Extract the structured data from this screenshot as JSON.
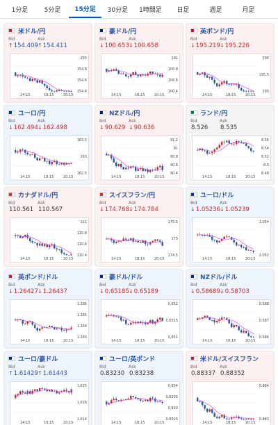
{
  "tabs": [
    {
      "label": "1分足",
      "active": false
    },
    {
      "label": "5分足",
      "active": false
    },
    {
      "label": "15分足",
      "active": true
    },
    {
      "label": "30分足",
      "active": false
    },
    {
      "label": "1時間足",
      "active": false
    },
    {
      "label": "日足",
      "active": false
    },
    {
      "label": "週足",
      "active": false
    },
    {
      "label": "月足",
      "active": false
    }
  ],
  "colors": {
    "down": "#c0282d",
    "up": "#2a55a8",
    "link": "#2a55a8",
    "ma": "#d34bd3"
  },
  "cards": [
    {
      "pair": "米ドル/円",
      "flag": "us",
      "bid": "154.409",
      "ask": "154.411",
      "bid_dir": "up",
      "ask_dir": "up",
      "card_tone": "down",
      "ylabels": [
        "155",
        "154.8",
        "154.6",
        "154.4"
      ],
      "xlabels": [
        "14:15",
        "18:15",
        "20:15"
      ]
    },
    {
      "pair": "豪ドル/円",
      "flag": "au",
      "bid": "100.653",
      "ask": "100.658",
      "bid_dir": "down",
      "ask_dir": "down",
      "card_tone": "down",
      "ylabels": [
        "101",
        "100.8",
        "100.6",
        "100.4"
      ],
      "xlabels": [
        "14:15",
        "18:15",
        "20:15"
      ]
    },
    {
      "pair": "英ポンド/円",
      "flag": "gb",
      "bid": "195.219",
      "ask": "195.226",
      "bid_dir": "down",
      "ask_dir": "down",
      "card_tone": "down",
      "ylabels": [
        "196",
        "195.5",
        "195"
      ],
      "xlabels": [
        "14:15",
        "18:15",
        "20:15"
      ]
    },
    {
      "pair": "ユーロ/円",
      "flag": "eu",
      "bid": "162.494",
      "ask": "162.498",
      "bid_dir": "down",
      "ask_dir": "down",
      "card_tone": "up",
      "ylabels": [
        "163.5",
        "163",
        "162.5"
      ],
      "xlabels": [
        "14:15",
        "18:15",
        "20:15"
      ]
    },
    {
      "pair": "NZドル/円",
      "flag": "nz",
      "bid": "90.629",
      "ask": "90.636",
      "bid_dir": "down",
      "ask_dir": "down",
      "card_tone": "down",
      "ylabels": [
        "91.2",
        "91",
        "90.8",
        "90.6",
        "90.4"
      ],
      "xlabels": [
        "14:15",
        "18:15",
        "20:15"
      ]
    },
    {
      "pair": "ランド/円",
      "flag": "za",
      "bid": "8.526",
      "ask": "8.535",
      "bid_dir": "flat",
      "ask_dir": "flat",
      "card_tone": "flat",
      "ylabels": [
        "8.56",
        "8.54",
        "8.52",
        "8.5",
        "8.48"
      ],
      "xlabels": [
        "14:15",
        "18:15",
        "20:15"
      ]
    },
    {
      "pair": "カナダドル/円",
      "flag": "ca",
      "bid": "110.561",
      "ask": "110.567",
      "bid_dir": "flat",
      "ask_dir": "flat",
      "card_tone": "down",
      "ylabels": [
        "111",
        "110.8",
        "110.6",
        "110.4"
      ],
      "xlabels": [
        "14:15",
        "18:15",
        "20:15"
      ]
    },
    {
      "pair": "スイスフラン/円",
      "flag": "ch",
      "bid": "174.768",
      "ask": "174.784",
      "bid_dir": "down",
      "ask_dir": "down",
      "card_tone": "down",
      "ylabels": [
        "175.5",
        "175",
        "174.5"
      ],
      "xlabels": [
        "14:15",
        "18:15",
        "20:15"
      ]
    },
    {
      "pair": "ユーロ/ドル",
      "flag": "eu",
      "bid": "1.05236",
      "ask": "1.05239",
      "bid_dir": "down",
      "ask_dir": "down",
      "card_tone": "up",
      "ylabels": [
        "1.054",
        "1.052"
      ],
      "xlabels": [
        "14:15",
        "18:15",
        "20:15"
      ]
    },
    {
      "pair": "英ポンド/ドル",
      "flag": "gb",
      "bid": "1.26427",
      "ask": "1.26437",
      "bid_dir": "down",
      "ask_dir": "down",
      "card_tone": "up",
      "ylabels": [
        "1.266",
        "1.265",
        "1.264",
        "1.263"
      ],
      "xlabels": [
        "14:15",
        "18:15",
        "20:15"
      ]
    },
    {
      "pair": "豪ドル/ドル",
      "flag": "au",
      "bid": "0.65185",
      "ask": "0.65189",
      "bid_dir": "down",
      "ask_dir": "down",
      "card_tone": "up",
      "ylabels": [
        "0.652",
        "0.6515",
        "0.651"
      ],
      "xlabels": [
        "14:15",
        "18:15",
        "20:15"
      ]
    },
    {
      "pair": "NZドル/ドル",
      "flag": "nz",
      "bid": "0.58689",
      "ask": "0.58703",
      "bid_dir": "down",
      "ask_dir": "down",
      "card_tone": "up",
      "ylabels": [
        "0.588",
        "0.587",
        "0.586"
      ],
      "xlabels": [
        "14:15",
        "18:15",
        "20:15"
      ]
    },
    {
      "pair": "ユーロ/豪ドル",
      "flag": "eu",
      "bid": "1.61429",
      "ask": "1.61443",
      "bid_dir": "up",
      "ask_dir": "up",
      "card_tone": "up",
      "ylabels": [
        "1.615",
        "1.616",
        "1.614"
      ],
      "xlabels": [
        "14:15",
        "18:15",
        "20:15"
      ]
    },
    {
      "pair": "ユーロ/英ポンド",
      "flag": "eu",
      "bid": "0.83230",
      "ask": "0.83238",
      "bid_dir": "flat",
      "ask_dir": "flat",
      "card_tone": "up",
      "ylabels": [
        "0.834",
        "0.8335",
        "0.833",
        "0.8325"
      ],
      "xlabels": [
        "14:15",
        "18:15",
        "20:15"
      ]
    },
    {
      "pair": "米ドル/スイスフラン",
      "flag": "us",
      "bid": "0.88337",
      "ask": "0.88352",
      "bid_dir": "flat",
      "ask_dir": "flat",
      "card_tone": "down",
      "ylabels": [
        "0.884",
        "0.883"
      ],
      "xlabels": [
        "14:15",
        "18:15",
        "20:15"
      ]
    }
  ],
  "labels": {
    "bid": "Bid",
    "ask": "Ask"
  }
}
